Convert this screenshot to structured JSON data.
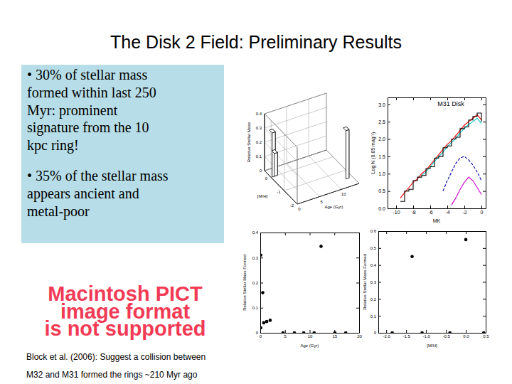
{
  "slide": {
    "title": "The Disk 2 Field: Preliminary Results",
    "bullets": [
      [
        "• 30% of stellar mass",
        "formed within last 250",
        "Myr: prominent",
        "signature from the 10",
        "kpc ring!"
      ],
      [
        "• 35% of the stellar mass",
        "appears ancient and",
        "metal-poor"
      ]
    ],
    "placeholder": [
      "Macintosh PICT",
      "image format",
      "is not supported"
    ],
    "citation": [
      "Block et al. (2006): Suggest a collision between",
      "M32 and M31 formed the rings ~210 Myr ago"
    ]
  },
  "chart_data": [
    {
      "type": "bar3d",
      "x_label": "Age (Gyr)",
      "y_label": "[M/H]",
      "z_label": "Relative Stellar Mass",
      "x": [
        0.25,
        0.75,
        12.5
      ],
      "y": [
        0,
        0,
        -1.5
      ],
      "values": [
        0.31,
        0.16,
        0.34
      ],
      "color": "#ffffff",
      "xlim": [
        0,
        14
      ],
      "ylim": [
        -2,
        0.5
      ],
      "zlim": [
        0,
        0.4
      ],
      "xticks": [
        0,
        5,
        10
      ],
      "yticks": [
        -2,
        -1,
        0
      ],
      "zticks": [
        0,
        0.1,
        0.2,
        0.3,
        0.4
      ]
    },
    {
      "type": "line",
      "title": "M31 Disk",
      "x_label": "MK",
      "y_label": "Log N (0.05 mag⁻¹)",
      "x": [
        -9.5,
        -9,
        -8.5,
        -8,
        -7.5,
        -7,
        -6.5,
        -6,
        -5.5,
        -5,
        -4.5,
        -4,
        -3.5,
        -3,
        -2.5,
        -2,
        -1.5,
        -1,
        -0.5,
        0
      ],
      "series": [
        {
          "color": "#ff0000",
          "line_style": "solid",
          "values": [
            0.3,
            0.45,
            0.6,
            0.75,
            0.85,
            1.0,
            1.1,
            1.25,
            1.4,
            1.55,
            1.7,
            1.85,
            1.95,
            2.1,
            2.25,
            2.4,
            2.5,
            2.6,
            2.7,
            2.55
          ]
        },
        {
          "color": "#00c8c8",
          "line_style": "solid",
          "values": [
            null,
            null,
            null,
            null,
            null,
            0.95,
            1.05,
            1.2,
            1.35,
            1.5,
            1.62,
            1.78,
            1.9,
            2.02,
            2.18,
            2.3,
            2.42,
            2.5,
            2.6,
            2.45
          ]
        },
        {
          "color": "#000000",
          "line_style": "steps",
          "values": [
            0.2,
            0.5,
            0.55,
            0.8,
            0.9,
            0.95,
            1.15,
            1.2,
            1.45,
            1.5,
            1.75,
            1.8,
            2.0,
            2.05,
            2.3,
            2.35,
            2.55,
            2.65,
            2.75,
            2.5
          ]
        },
        {
          "color": "#0000aa",
          "line_style": "dashed",
          "values": [
            null,
            null,
            null,
            null,
            null,
            null,
            null,
            null,
            null,
            null,
            0.5,
            0.8,
            1.05,
            1.3,
            1.45,
            1.5,
            1.4,
            1.25,
            1.05,
            0.8
          ]
        },
        {
          "color": "#cc00cc",
          "line_style": "solid",
          "values": [
            null,
            null,
            null,
            null,
            null,
            null,
            null,
            null,
            null,
            null,
            null,
            null,
            0.1,
            0.3,
            0.55,
            0.75,
            0.9,
            0.8,
            0.6,
            0.4
          ]
        }
      ],
      "xlim": [
        -11,
        0.5
      ],
      "ylim": [
        0,
        3.2
      ],
      "xticks": [
        -10,
        -8,
        -6,
        -4,
        -2,
        0
      ],
      "yticks": [
        {
          "value": 0,
          "label": "0.0"
        },
        0.5,
        {
          "value": 1,
          "label": "1.0"
        },
        1.5,
        {
          "value": 2,
          "label": "2.0"
        },
        2.5,
        {
          "value": 3,
          "label": "3.0"
        }
      ]
    },
    {
      "type": "scatter",
      "x_label": "Age (Gyr)",
      "y_label": "Relative Stellar Mass Formed",
      "color": "#000000",
      "marker": "circle",
      "x": [
        0.1,
        0.1,
        0.5,
        0.7,
        1.3,
        2.0,
        4.6,
        6.9,
        8.8,
        10.9,
        12.3,
        15.1,
        17.3
      ],
      "values": [
        0.31,
        0.02,
        0.16,
        0.04,
        0.045,
        0.05,
        0,
        0,
        0,
        0,
        0.345,
        0,
        0
      ],
      "xlim": [
        0,
        20
      ],
      "ylim": [
        0,
        0.4
      ],
      "xticks": [
        0,
        5,
        10,
        15,
        20
      ],
      "yticks": [
        0,
        0.1,
        0.2,
        0.3,
        0.4
      ]
    },
    {
      "type": "scatter",
      "x_label": "[M/H]",
      "y_label": "Relative Stellar Mass Formed",
      "color": "#000000",
      "marker": "circle",
      "x": [
        -1.85,
        -1.35,
        -1.1,
        -0.4,
        0.0,
        0.45
      ],
      "values": [
        0,
        0.45,
        0,
        0,
        0.55,
        0
      ],
      "xlim": [
        -2.2,
        0.5
      ],
      "ylim": [
        0,
        0.6
      ],
      "xticks": [
        {
          "value": -2,
          "label": "-2.0"
        },
        -1.5,
        {
          "value": -1,
          "label": "-1.0"
        },
        -0.5,
        {
          "value": 0,
          "label": "0.0"
        },
        0.5
      ],
      "yticks": [
        0,
        0.1,
        0.2,
        0.3,
        0.4,
        0.5,
        0.6
      ]
    }
  ]
}
